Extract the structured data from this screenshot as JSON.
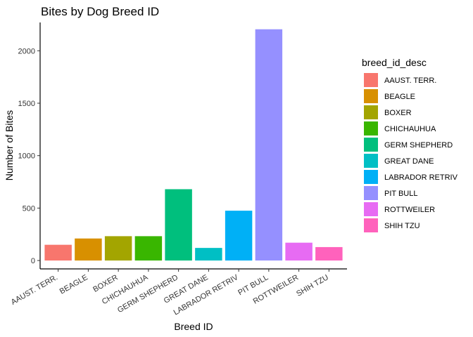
{
  "chart_data": {
    "type": "bar",
    "title": "Bites by Dog Breed ID",
    "xlabel": "Breed ID",
    "ylabel": "Number of Bites",
    "ylim": [
      -80,
      2270
    ],
    "yticks": [
      0,
      500,
      1000,
      1500,
      2000
    ],
    "grid": false,
    "legend_position": "right",
    "legend_title": "breed_id_desc",
    "categories": [
      "AAUST. TERR.",
      "BEAGLE",
      "BOXER",
      "CHICHAUHUA",
      "GERM SHEPHERD",
      "GREAT DANE",
      "LABRADOR RETRIV",
      "PIT BULL",
      "ROTTWEILER",
      "SHIH TZU"
    ],
    "values": [
      150,
      210,
      232,
      232,
      680,
      120,
      475,
      2205,
      170,
      128
    ],
    "colors": [
      "#F8766D",
      "#D89000",
      "#A3A500",
      "#39B600",
      "#00BF7D",
      "#00BFC4",
      "#00B0F6",
      "#9590FF",
      "#E76BF3",
      "#FF62BC"
    ]
  }
}
